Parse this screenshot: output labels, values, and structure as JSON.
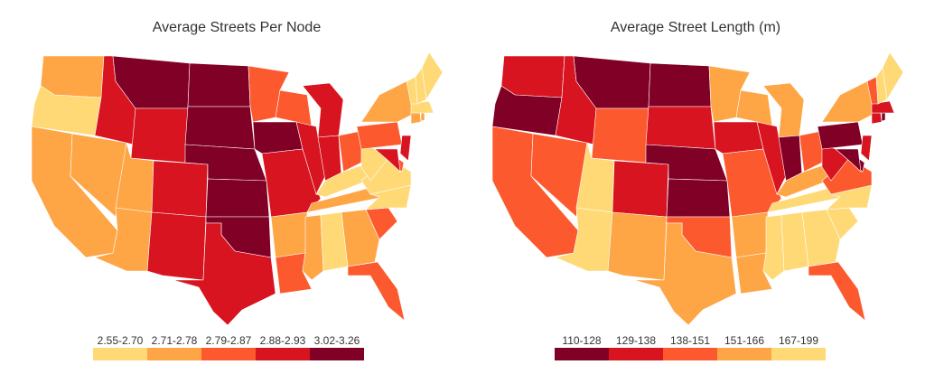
{
  "maps": [
    {
      "title": "Average Streets Per Node",
      "legend": [
        {
          "label": "2.55-2.70",
          "color": "#fed976"
        },
        {
          "label": "2.71-2.78",
          "color": "#fea546"
        },
        {
          "label": "2.79-2.87",
          "color": "#fc5a2e"
        },
        {
          "label": "2.88-2.93",
          "color": "#d7141f"
        },
        {
          "label": "3.02-3.26",
          "color": "#800026"
        }
      ],
      "state_class": {
        "WA": 1,
        "OR": 0,
        "CA": 1,
        "NV": 1,
        "ID": 3,
        "MT": 4,
        "WY": 3,
        "UT": 1,
        "AZ": 1,
        "CO": 3,
        "NM": 3,
        "ND": 4,
        "SD": 4,
        "NE": 4,
        "KS": 4,
        "OK": 4,
        "TX": 3,
        "MN": 2,
        "IA": 4,
        "MO": 3,
        "AR": 1,
        "LA": 2,
        "WI": 2,
        "IL": 3,
        "MI": 3,
        "IN": 3,
        "OH": 2,
        "KY": 0,
        "TN": 1,
        "MS": 1,
        "AL": 0,
        "GA": 1,
        "FL": 2,
        "SC": 2,
        "NC": 0,
        "VA": 0,
        "WV": 0,
        "PA": 2,
        "NY": 1,
        "VT": 0,
        "NH": 0,
        "ME": 0,
        "MA": 0,
        "RI": 1,
        "CT": 1,
        "NJ": 3,
        "DE": 2,
        "MD": 3
      }
    },
    {
      "title": "Average Street Length (m)",
      "legend": [
        {
          "label": "110-128",
          "color": "#800026"
        },
        {
          "label": "129-138",
          "color": "#d7141f"
        },
        {
          "label": "138-151",
          "color": "#fc5a2e"
        },
        {
          "label": "151-166",
          "color": "#fea546"
        },
        {
          "label": "167-199",
          "color": "#fed976"
        }
      ],
      "state_class": {
        "WA": 1,
        "OR": 0,
        "CA": 2,
        "NV": 2,
        "ID": 1,
        "MT": 0,
        "WY": 2,
        "UT": 4,
        "AZ": 4,
        "CO": 1,
        "NM": 3,
        "ND": 0,
        "SD": 1,
        "NE": 0,
        "KS": 0,
        "OK": 2,
        "TX": 3,
        "MN": 3,
        "IA": 1,
        "MO": 2,
        "AR": 3,
        "LA": 3,
        "WI": 3,
        "IL": 1,
        "MI": 3,
        "IN": 0,
        "OH": 2,
        "KY": 3,
        "TN": 4,
        "MS": 4,
        "AL": 4,
        "GA": 4,
        "FL": 2,
        "SC": 4,
        "NC": 4,
        "VA": 2,
        "WV": 1,
        "PA": 0,
        "NY": 3,
        "VT": 2,
        "NH": 4,
        "ME": 4,
        "MA": 1,
        "RI": 0,
        "CT": 1,
        "NJ": 1,
        "DE": 0,
        "MD": 0
      }
    }
  ]
}
